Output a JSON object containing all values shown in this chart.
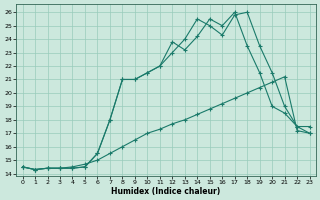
{
  "title": "",
  "xlabel": "Humidex (Indice chaleur)",
  "ylabel": "",
  "bg_color": "#cce8dd",
  "grid_color": "#99ccbb",
  "line_color": "#1a7a6a",
  "xlim": [
    -0.5,
    23.5
  ],
  "ylim": [
    13.8,
    26.6
  ],
  "xticks": [
    0,
    1,
    2,
    3,
    4,
    5,
    6,
    7,
    8,
    9,
    10,
    11,
    12,
    13,
    14,
    15,
    16,
    17,
    18,
    19,
    20,
    21,
    22,
    23
  ],
  "yticks": [
    14,
    15,
    16,
    17,
    18,
    19,
    20,
    21,
    22,
    23,
    24,
    25,
    26
  ],
  "line1_x": [
    0,
    1,
    2,
    3,
    4,
    5,
    6,
    7,
    8,
    9,
    10,
    11,
    12,
    13,
    14,
    15,
    16,
    17,
    18,
    19,
    20,
    21,
    22,
    23
  ],
  "line1_y": [
    14.5,
    14.3,
    14.4,
    14.4,
    14.4,
    14.5,
    15.5,
    18.0,
    21.0,
    21.0,
    21.5,
    22.0,
    23.8,
    23.2,
    24.2,
    25.5,
    25.0,
    26.0,
    23.5,
    21.5,
    19.0,
    18.5,
    17.5,
    17.0
  ],
  "line2_x": [
    0,
    1,
    2,
    3,
    4,
    5,
    6,
    7,
    8,
    9,
    10,
    11,
    12,
    13,
    14,
    15,
    16,
    17,
    18,
    19,
    20,
    21,
    22,
    23
  ],
  "line2_y": [
    14.5,
    14.3,
    14.4,
    14.4,
    14.4,
    14.5,
    15.5,
    18.0,
    21.0,
    21.0,
    21.5,
    22.0,
    23.0,
    24.0,
    25.5,
    25.0,
    24.3,
    25.8,
    26.0,
    23.5,
    21.5,
    19.0,
    17.5,
    17.5
  ],
  "line3_x": [
    0,
    1,
    2,
    3,
    4,
    5,
    6,
    7,
    8,
    9,
    10,
    11,
    12,
    13,
    14,
    15,
    16,
    17,
    18,
    19,
    20,
    21,
    22,
    23
  ],
  "line3_y": [
    14.5,
    14.3,
    14.4,
    14.4,
    14.5,
    14.7,
    15.0,
    15.5,
    16.0,
    16.5,
    17.0,
    17.3,
    17.7,
    18.0,
    18.4,
    18.8,
    19.2,
    19.6,
    20.0,
    20.4,
    20.8,
    21.2,
    17.2,
    17.0
  ]
}
